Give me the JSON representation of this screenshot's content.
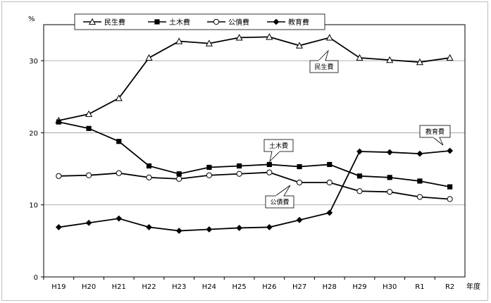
{
  "chart_data": {
    "type": "line",
    "categories": [
      "H19",
      "H20",
      "H21",
      "H22",
      "H23",
      "H24",
      "H25",
      "H26",
      "H27",
      "H28",
      "H29",
      "H30",
      "R1",
      "R2"
    ],
    "ylabel": "%",
    "xlabel": "年度",
    "ylim": [
      0,
      35
    ],
    "yticks": [
      0,
      10,
      20,
      30
    ],
    "grid": true,
    "legend": "top-left",
    "series": [
      {
        "name": "民生費",
        "marker": "triangle-open",
        "values": [
          21.7,
          22.6,
          24.8,
          30.4,
          32.7,
          32.4,
          33.2,
          33.3,
          32.1,
          33.2,
          30.4,
          30.1,
          29.8,
          30.4
        ]
      },
      {
        "name": "土木費",
        "marker": "square-filled",
        "values": [
          21.5,
          20.6,
          18.8,
          15.4,
          14.3,
          15.2,
          15.4,
          15.6,
          15.3,
          15.6,
          14.0,
          13.8,
          13.3,
          12.5
        ]
      },
      {
        "name": "公債費",
        "marker": "circle-open",
        "values": [
          14.0,
          14.1,
          14.4,
          13.8,
          13.6,
          14.1,
          14.3,
          14.5,
          13.1,
          13.1,
          11.9,
          11.8,
          11.1,
          10.8
        ]
      },
      {
        "name": "教育費",
        "marker": "diamond-filled",
        "values": [
          6.9,
          7.5,
          8.1,
          6.9,
          6.4,
          6.6,
          6.8,
          6.9,
          7.9,
          8.9,
          17.4,
          17.3,
          17.1,
          17.5
        ]
      }
    ],
    "annotations": [
      {
        "text": "民生費",
        "series": 0
      },
      {
        "text": "土木費",
        "series": 1
      },
      {
        "text": "公債費",
        "series": 2
      },
      {
        "text": "教育費",
        "series": 3
      }
    ]
  }
}
